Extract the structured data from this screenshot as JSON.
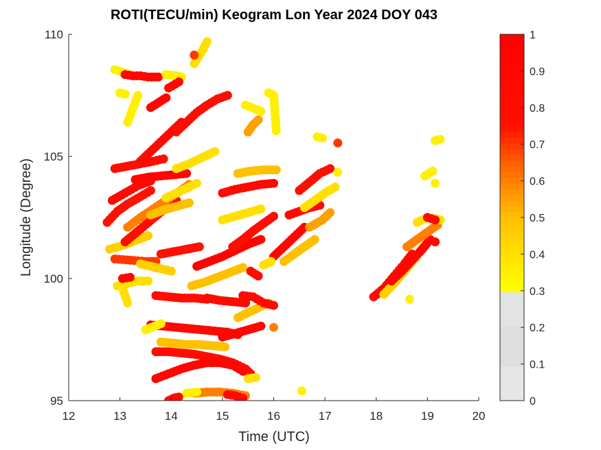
{
  "chart_data": {
    "type": "scatter",
    "title": "ROTI(TECU/min) Keogram Lon Year 2024  DOY 043",
    "xlabel": "Time (UTC)",
    "ylabel": "Longitude (Degree)",
    "xlim": [
      12,
      20
    ],
    "ylim": [
      95,
      110
    ],
    "xticks": [
      "12",
      "13",
      "14",
      "15",
      "16",
      "17",
      "18",
      "19",
      "20"
    ],
    "yticks": [
      "95",
      "100",
      "105",
      "110"
    ],
    "grid": false,
    "colorbar": {
      "range": [
        0,
        1
      ],
      "ticks": [
        "0",
        "0.1",
        "0.2",
        "0.3",
        "0.4",
        "0.5",
        "0.6",
        "0.7",
        "0.8",
        "0.9",
        "1"
      ],
      "low_color": "#e0e0e0",
      "color_stops": [
        {
          "value": 0.3,
          "color": "#ffff00"
        },
        {
          "value": 0.5,
          "color": "#ffc000"
        },
        {
          "value": 0.65,
          "color": "#ff6000"
        },
        {
          "value": 0.75,
          "color": "#ff1000"
        },
        {
          "value": 1.0,
          "color": "#ff0000"
        }
      ]
    },
    "tracks": [
      {
        "t": [
          12.75,
          12.95,
          13.15,
          13.4,
          13.6
        ],
        "lon": [
          102.3,
          102.75,
          103.05,
          103.35,
          103.6
        ],
        "roti": 0.75
      },
      {
        "t": [
          12.8,
          13.05,
          13.3,
          13.55
        ],
        "lon": [
          101.2,
          101.35,
          101.55,
          101.75
        ],
        "roti": 0.45
      },
      {
        "t": [
          12.85,
          13.1,
          13.35,
          13.6
        ],
        "lon": [
          103.2,
          103.5,
          103.8,
          104.0
        ],
        "roti": 0.85
      },
      {
        "t": [
          12.9,
          13.15,
          13.4,
          13.65,
          13.85
        ],
        "lon": [
          104.5,
          104.6,
          104.7,
          104.8,
          104.9
        ],
        "roti": 0.8
      },
      {
        "t": [
          12.9,
          13.2,
          13.5,
          13.7
        ],
        "lon": [
          100.8,
          100.75,
          100.7,
          100.7
        ],
        "roti": 0.7
      },
      {
        "t": [
          12.9,
          13.05,
          13.2
        ],
        "lon": [
          108.55,
          108.45,
          108.35
        ],
        "roti": 0.35
      },
      {
        "t": [
          13.1,
          13.25,
          13.4,
          13.55,
          13.75
        ],
        "lon": [
          108.35,
          108.3,
          108.3,
          108.25,
          108.25
        ],
        "roti": 0.9
      },
      {
        "t": [
          13.0,
          13.1
        ],
        "lon": [
          107.6,
          107.55
        ],
        "roti": 0.35
      },
      {
        "t": [
          13.6,
          13.75,
          13.9
        ],
        "lon": [
          107.0,
          107.2,
          107.4
        ],
        "roti": 0.9
      },
      {
        "t": [
          13.9,
          14.1,
          14.2
        ],
        "lon": [
          108.35,
          108.3,
          108.25
        ],
        "roti": 0.35
      },
      {
        "t": [
          12.95,
          13.15,
          13.35,
          13.55
        ],
        "lon": [
          99.7,
          99.8,
          99.9,
          99.9
        ],
        "roti": 0.4
      },
      {
        "t": [
          13.05,
          13.2
        ],
        "lon": [
          100.0,
          100.05
        ],
        "roti": 0.85
      },
      {
        "t": [
          13.4,
          13.6,
          13.8,
          14.0
        ],
        "lon": [
          100.6,
          100.5,
          100.4,
          100.3
        ],
        "roti": 0.45
      },
      {
        "t": [
          13.1,
          13.3,
          13.5,
          13.7,
          13.9,
          14.1
        ],
        "lon": [
          101.5,
          101.85,
          102.2,
          102.55,
          102.9,
          103.2
        ],
        "roti": 0.8
      },
      {
        "t": [
          13.15,
          13.4,
          13.65,
          13.9,
          14.15,
          14.35
        ],
        "lon": [
          102.1,
          102.5,
          102.85,
          103.2,
          103.55,
          103.85
        ],
        "roti": 0.6
      },
      {
        "t": [
          13.3,
          13.55,
          13.8,
          14.05,
          14.3
        ],
        "lon": [
          104.05,
          104.15,
          104.2,
          104.25,
          104.3
        ],
        "roti": 0.9
      },
      {
        "t": [
          13.4,
          13.6,
          13.8,
          14.0,
          14.2
        ],
        "lon": [
          104.8,
          105.2,
          105.6,
          106.0,
          106.4
        ],
        "roti": 0.85
      },
      {
        "t": [
          13.9,
          14.1,
          14.3,
          14.5
        ],
        "lon": [
          103.3,
          103.5,
          103.7,
          103.9
        ],
        "roti": 0.4
      },
      {
        "t": [
          13.8,
          14.05,
          14.3,
          14.55
        ],
        "lon": [
          101.0,
          101.1,
          101.2,
          101.3
        ],
        "roti": 0.75
      },
      {
        "t": [
          13.6,
          13.85,
          14.1,
          14.35
        ],
        "lon": [
          102.6,
          102.8,
          102.95,
          103.1
        ],
        "roti": 0.5
      },
      {
        "t": [
          14.1,
          14.3,
          14.5,
          14.7,
          14.9,
          15.1
        ],
        "lon": [
          106.0,
          106.4,
          106.8,
          107.1,
          107.35,
          107.5
        ],
        "roti": 0.8
      },
      {
        "t": [
          14.1,
          14.35,
          14.6,
          14.85
        ],
        "lon": [
          104.5,
          104.7,
          104.95,
          105.2
        ],
        "roti": 0.4
      },
      {
        "t": [
          14.45,
          14.6,
          14.7
        ],
        "lon": [
          108.8,
          109.3,
          109.7
        ],
        "roti": 0.4
      },
      {
        "t": [
          14.45
        ],
        "lon": [
          109.15
        ],
        "roti": 0.7
      },
      {
        "t": [
          13.7,
          13.95,
          14.2,
          14.45,
          14.7
        ],
        "lon": [
          99.3,
          99.25,
          99.2,
          99.2,
          99.15
        ],
        "roti": 0.8
      },
      {
        "t": [
          14.7,
          14.95,
          15.2,
          15.45
        ],
        "lon": [
          99.2,
          99.1,
          99.05,
          99.0
        ],
        "roti": 0.85
      },
      {
        "t": [
          14.5,
          14.75,
          15.0,
          15.25,
          15.5,
          15.75
        ],
        "lon": [
          100.5,
          100.7,
          100.9,
          101.15,
          101.4,
          101.6
        ],
        "roti": 0.95
      },
      {
        "t": [
          14.4,
          14.65,
          14.9,
          15.15,
          15.4
        ],
        "lon": [
          99.7,
          99.85,
          100.05,
          100.25,
          100.45
        ],
        "roti": 0.5
      },
      {
        "t": [
          13.6,
          13.85,
          14.1,
          14.35,
          14.6,
          14.85,
          15.1,
          15.3
        ],
        "lon": [
          98.1,
          98.05,
          98.0,
          97.95,
          97.9,
          97.85,
          97.8,
          97.7
        ],
        "roti": 0.85
      },
      {
        "t": [
          13.8,
          14.05,
          14.3,
          14.55,
          14.8,
          15.05
        ],
        "lon": [
          97.4,
          97.35,
          97.3,
          97.3,
          97.25,
          97.2
        ],
        "roti": 0.5
      },
      {
        "t": [
          13.7,
          13.95,
          14.2,
          14.45,
          14.7,
          14.95,
          15.2,
          15.45,
          15.55
        ],
        "lon": [
          97.0,
          97.0,
          96.95,
          96.9,
          96.8,
          96.7,
          96.55,
          96.3,
          96.1
        ],
        "roti": 0.8
      },
      {
        "t": [
          13.7,
          13.95,
          14.2,
          14.45,
          14.7,
          14.95,
          15.2,
          15.4
        ],
        "lon": [
          95.9,
          96.1,
          96.3,
          96.45,
          96.55,
          96.55,
          96.45,
          96.2
        ],
        "roti": 0.9
      },
      {
        "t": [
          14.45,
          14.7,
          14.95,
          15.2,
          15.45
        ],
        "lon": [
          95.3,
          95.35,
          95.35,
          95.3,
          95.2
        ],
        "roti": 0.6
      },
      {
        "t": [
          13.95,
          14.05,
          14.15
        ],
        "lon": [
          95.0,
          95.1,
          95.15
        ],
        "roti": 0.8
      },
      {
        "t": [
          14.3,
          14.5
        ],
        "lon": [
          95.3,
          95.35
        ],
        "roti": 0.35
      },
      {
        "t": [
          15.1,
          15.25,
          15.4
        ],
        "lon": [
          95.25,
          95.2,
          95.1
        ],
        "roti": 0.85
      },
      {
        "t": [
          15.5,
          15.65
        ],
        "lon": [
          95.9,
          95.95
        ],
        "roti": 0.4
      },
      {
        "t": [
          16.55
        ],
        "lon": [
          95.4
        ],
        "roti": 0.35
      },
      {
        "t": [
          15.0,
          15.25,
          15.5,
          15.75
        ],
        "lon": [
          97.6,
          97.75,
          97.9,
          98.05
        ],
        "roti": 0.9
      },
      {
        "t": [
          15.3,
          15.5,
          15.7,
          15.9
        ],
        "lon": [
          98.4,
          98.6,
          98.8,
          99.0
        ],
        "roti": 0.5
      },
      {
        "t": [
          15.4,
          15.6,
          15.8,
          16.0
        ],
        "lon": [
          99.3,
          99.25,
          99.0,
          98.9
        ],
        "roti": 0.85
      },
      {
        "t": [
          15.2,
          15.4,
          15.6,
          15.8,
          16.0
        ],
        "lon": [
          101.3,
          101.6,
          101.95,
          102.25,
          102.55
        ],
        "roti": 0.8
      },
      {
        "t": [
          15.0,
          15.25,
          15.5,
          15.75
        ],
        "lon": [
          102.4,
          102.55,
          102.7,
          102.85
        ],
        "roti": 0.4
      },
      {
        "t": [
          15.0,
          15.25,
          15.5,
          15.75,
          16.0
        ],
        "lon": [
          103.5,
          103.65,
          103.75,
          103.85,
          103.9
        ],
        "roti": 0.85
      },
      {
        "t": [
          15.3,
          15.55,
          15.8,
          16.05
        ],
        "lon": [
          104.3,
          104.4,
          104.45,
          104.45
        ],
        "roti": 0.5
      },
      {
        "t": [
          15.5,
          15.6,
          15.7
        ],
        "lon": [
          106.0,
          106.3,
          106.5
        ],
        "roti": 0.55
      },
      {
        "t": [
          15.45,
          15.75
        ],
        "lon": [
          107.1,
          106.85
        ],
        "roti": 0.35
      },
      {
        "t": [
          15.9,
          16.0,
          16.05
        ],
        "lon": [
          107.6,
          107.5,
          106.05
        ],
        "roti": 0.35
      },
      {
        "t": [
          16.0,
          16.2,
          16.4,
          16.6
        ],
        "lon": [
          100.9,
          101.3,
          101.7,
          102.1
        ],
        "roti": 0.9
      },
      {
        "t": [
          16.2,
          16.4,
          16.6,
          16.8
        ],
        "lon": [
          100.7,
          101.0,
          101.3,
          101.6
        ],
        "roti": 0.5
      },
      {
        "t": [
          16.3,
          16.5,
          16.7,
          16.9
        ],
        "lon": [
          102.6,
          102.75,
          102.9,
          103.0
        ],
        "roti": 0.85
      },
      {
        "t": [
          16.5,
          16.7,
          16.9,
          17.1
        ],
        "lon": [
          103.6,
          103.95,
          104.3,
          104.5
        ],
        "roti": 0.8
      },
      {
        "t": [
          16.6,
          16.8,
          17.0,
          17.2
        ],
        "lon": [
          102.9,
          103.2,
          103.5,
          103.75
        ],
        "roti": 0.4
      },
      {
        "t": [
          16.7,
          16.95,
          17.1
        ],
        "lon": [
          102.1,
          102.4,
          102.7
        ],
        "roti": 0.55
      },
      {
        "t": [
          16.85,
          16.95
        ],
        "lon": [
          105.8,
          105.75
        ],
        "roti": 0.35
      },
      {
        "t": [
          17.25
        ],
        "lon": [
          105.55
        ],
        "roti": 0.7
      },
      {
        "t": [
          17.25
        ],
        "lon": [
          104.35
        ],
        "roti": 0.35
      },
      {
        "t": [
          16.0
        ],
        "lon": [
          98.0
        ],
        "roti": 0.6
      },
      {
        "t": [
          17.95,
          18.15,
          18.35,
          18.55,
          18.7
        ],
        "lon": [
          99.25,
          99.6,
          100.1,
          100.6,
          101.0
        ],
        "roti": 0.85
      },
      {
        "t": [
          18.15,
          18.35,
          18.55,
          18.75,
          18.9
        ],
        "lon": [
          99.35,
          99.8,
          100.3,
          100.8,
          101.25
        ],
        "roti": 0.45
      },
      {
        "t": [
          18.3,
          18.5,
          18.7,
          18.9,
          19.05
        ],
        "lon": [
          99.9,
          100.3,
          100.75,
          101.2,
          101.6
        ],
        "roti": 0.9
      },
      {
        "t": [
          18.6,
          18.8,
          19.0,
          19.2
        ],
        "lon": [
          101.3,
          101.6,
          101.9,
          102.2
        ],
        "roti": 0.6
      },
      {
        "t": [
          18.8,
          19.0,
          19.15,
          19.25
        ],
        "lon": [
          102.3,
          102.5,
          102.45,
          102.4
        ],
        "roti": 0.4
      },
      {
        "t": [
          19.0,
          19.15
        ],
        "lon": [
          102.5,
          102.4
        ],
        "roti": 0.85
      },
      {
        "t": [
          19.15
        ],
        "lon": [
          101.5
        ],
        "roti": 0.85
      },
      {
        "t": [
          18.65
        ],
        "lon": [
          99.15
        ],
        "roti": 0.35
      },
      {
        "t": [
          18.95,
          19.1
        ],
        "lon": [
          104.2,
          104.4
        ],
        "roti": 0.35
      },
      {
        "t": [
          19.15,
          19.25
        ],
        "lon": [
          105.65,
          105.7
        ],
        "roti": 0.35
      },
      {
        "t": [
          19.15
        ],
        "lon": [
          103.9
        ],
        "roti": 0.35
      },
      {
        "t": [
          13.05,
          13.15
        ],
        "lon": [
          99.6,
          99.0
        ],
        "roti": 0.4
      },
      {
        "t": [
          13.15,
          13.35
        ],
        "lon": [
          106.4,
          107.5
        ],
        "roti": 0.35
      },
      {
        "t": [
          13.5,
          13.8
        ],
        "lon": [
          97.9,
          98.15
        ],
        "roti": 0.35
      },
      {
        "t": [
          13.95,
          14.15
        ],
        "lon": [
          107.8,
          108.05
        ],
        "roti": 0.85
      },
      {
        "t": [
          15.55,
          15.7
        ],
        "lon": [
          100.3,
          100.1
        ],
        "roti": 0.8
      },
      {
        "t": [
          15.8,
          15.95
        ],
        "lon": [
          100.55,
          100.7
        ],
        "roti": 0.4
      }
    ]
  }
}
